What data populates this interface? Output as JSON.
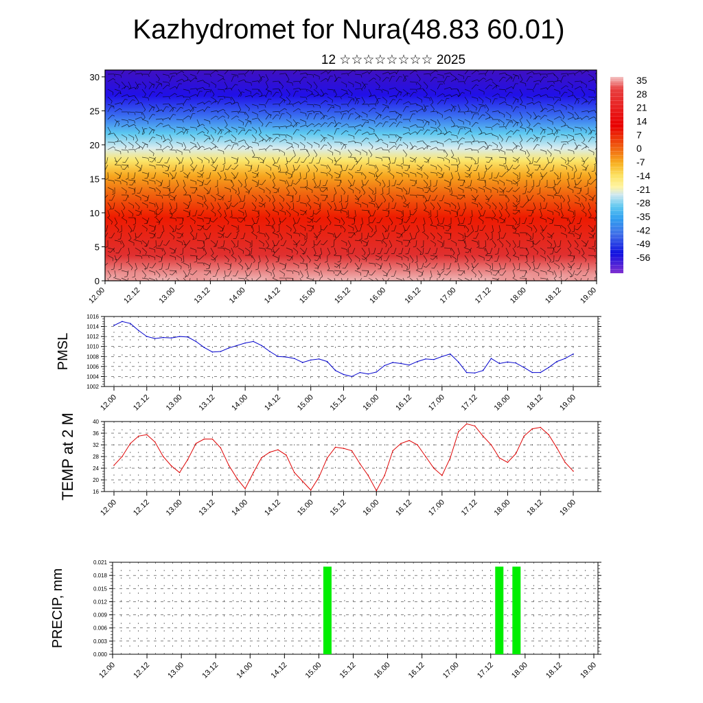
{
  "title": "Kazhydromet for Nura(48.83 60.01)",
  "subtitle": "12 ☆☆☆☆☆☆☆☆ 2025",
  "colors": {
    "pmsl_line": "#0000cc",
    "temp_line": "#dd0000",
    "precip_bar": "#00ee00",
    "grid": "#000000"
  },
  "chart_data": [
    {
      "type": "heatmap",
      "name": "vertical-section",
      "x_ticks": [
        "12.00",
        "12.12",
        "13.00",
        "13.12",
        "14.00",
        "14.12",
        "15.00",
        "15.12",
        "16.00",
        "16.12",
        "17.00",
        "17.12",
        "18.00",
        "18.12",
        "19.00"
      ],
      "y_ticks": [
        "0",
        "5",
        "10",
        "15",
        "20",
        "25",
        "30"
      ],
      "ylim": [
        0,
        31
      ],
      "colorbar_labels": [
        "35",
        "28",
        "21",
        "14",
        "7",
        "0",
        "-7",
        "-14",
        "-21",
        "-28",
        "-35",
        "-42",
        "-49",
        "-56"
      ],
      "colorbar_range": [
        -60,
        40
      ],
      "overlay": "wind barbs"
    },
    {
      "type": "line",
      "name": "pmsl",
      "ylabel": "PMSL",
      "ylim": [
        1002,
        1016
      ],
      "y_ticks": [
        "1016",
        "1014",
        "1012",
        "1010",
        "1008",
        "1006",
        "1004",
        "1002"
      ],
      "x_ticks": [
        "12.00",
        "12.12",
        "13.00",
        "13.12",
        "14.00",
        "14.12",
        "15.00",
        "15.12",
        "16.00",
        "16.12",
        "17.00",
        "17.12",
        "18.00",
        "18.12",
        "19.00"
      ],
      "x": [
        0,
        3,
        6,
        9,
        12,
        15,
        18,
        21,
        24,
        27,
        30,
        33,
        36,
        39,
        42,
        45,
        48,
        51,
        54,
        57,
        60,
        63,
        66,
        69,
        72,
        75,
        78,
        81,
        84,
        87,
        90,
        93,
        96,
        99,
        102,
        105,
        108,
        111,
        114,
        117,
        120,
        123,
        126,
        129,
        132,
        135,
        138,
        141,
        144,
        147,
        150,
        153,
        156,
        159,
        162,
        165,
        168
      ],
      "values": [
        1014.2,
        1015,
        1014.6,
        1013.2,
        1012,
        1011.6,
        1011.8,
        1011.7,
        1012,
        1011.9,
        1011,
        1009.8,
        1008.9,
        1009,
        1009.7,
        1010.2,
        1010.7,
        1011,
        1010.2,
        1009,
        1008,
        1007.9,
        1007.6,
        1006.8,
        1007.3,
        1007.5,
        1007,
        1005.2,
        1004.4,
        1004,
        1004.8,
        1004.5,
        1004.9,
        1006.2,
        1006.8,
        1006.6,
        1006.3,
        1007,
        1007.5,
        1007.4,
        1008,
        1008.5,
        1006.9,
        1004.8,
        1004.7,
        1005.2,
        1007.6,
        1006.6,
        1006.9,
        1006.7,
        1005.8,
        1004.8,
        1004.8,
        1005.8,
        1007,
        1007.6,
        1008.5
      ]
    },
    {
      "type": "line",
      "name": "temp",
      "ylabel": "TEMP at 2 M",
      "ylim": [
        16,
        40
      ],
      "y_ticks": [
        "40",
        "36",
        "32",
        "28",
        "24",
        "20",
        "16"
      ],
      "x_ticks": [
        "12.00",
        "12.12",
        "13.00",
        "13.12",
        "14.00",
        "14.12",
        "15.00",
        "15.12",
        "16.00",
        "16.12",
        "17.00",
        "17.12",
        "18.00",
        "18.12",
        "19.00"
      ],
      "x": [
        0,
        3,
        6,
        9,
        12,
        15,
        18,
        21,
        24,
        27,
        30,
        33,
        36,
        39,
        42,
        45,
        48,
        51,
        54,
        57,
        60,
        63,
        66,
        69,
        72,
        75,
        78,
        81,
        84,
        87,
        90,
        93,
        96,
        99,
        102,
        105,
        108,
        111,
        114,
        117,
        120,
        123,
        126,
        129,
        132,
        135,
        138,
        141,
        144,
        147,
        150,
        153,
        156,
        159,
        162,
        165,
        168
      ],
      "values": [
        25,
        28,
        32.5,
        35,
        35.5,
        33,
        28,
        24.8,
        22.5,
        27,
        32.5,
        34,
        34,
        31,
        25,
        20.5,
        17,
        22.5,
        27.6,
        29.5,
        30.3,
        28.5,
        22.5,
        19.5,
        16.5,
        21,
        27.5,
        31.2,
        30.8,
        30,
        25.5,
        21.5,
        16.3,
        21.5,
        30,
        32.5,
        33.5,
        32,
        28,
        24,
        21.5,
        27.5,
        36.5,
        39.2,
        38.5,
        35,
        32,
        27.5,
        26,
        29,
        35,
        37.5,
        38,
        35.5,
        31,
        26,
        23
      ]
    },
    {
      "type": "bar",
      "name": "precip",
      "ylabel": "PRECIP, mm",
      "ylim": [
        0,
        0.021
      ],
      "y_ticks": [
        "0.021",
        "0.018",
        "0.015",
        "0.012",
        "0.009",
        "0.006",
        "0.003",
        "0.000"
      ],
      "x_ticks": [
        "12.00",
        "12.12",
        "13.00",
        "13.12",
        "14.00",
        "14.12",
        "15.00",
        "15.12",
        "16.00",
        "16.12",
        "17.00",
        "17.12",
        "18.00",
        "18.12",
        "19.00"
      ],
      "x": [
        75,
        135,
        141
      ],
      "values": [
        0.02,
        0.02,
        0.02
      ]
    }
  ]
}
